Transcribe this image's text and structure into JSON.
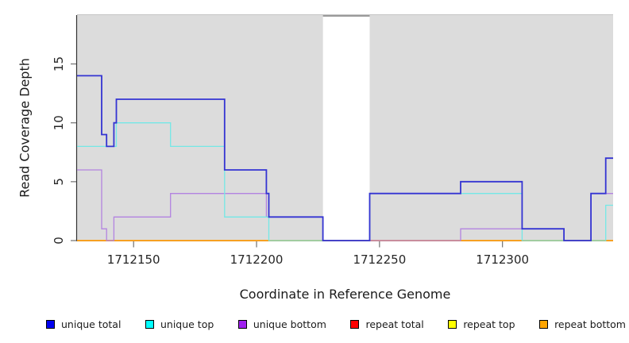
{
  "chart_data": {
    "type": "line",
    "subtype": "step",
    "title": "",
    "xlabel": "Coordinate in Reference Genome",
    "ylabel": "Read Coverage Depth",
    "xlim": [
      1712127,
      1712345
    ],
    "ylim": [
      0,
      19.15
    ],
    "grid": false,
    "legend_position": "bottom",
    "plot_bg_color": "#dcdcdc",
    "gap_x": [
      1712227,
      1712246
    ],
    "x_ticks": [
      {
        "value": 1712150,
        "label": "1712150"
      },
      {
        "value": 1712200,
        "label": "1712200"
      },
      {
        "value": 1712250,
        "label": "1712250"
      },
      {
        "value": 1712300,
        "label": "1712300"
      }
    ],
    "y_ticks": [
      {
        "value": 0,
        "label": "0"
      },
      {
        "value": 5,
        "label": "5"
      },
      {
        "value": 10,
        "label": "10"
      },
      {
        "value": 15,
        "label": "15"
      }
    ],
    "series": [
      {
        "name": "unique total",
        "line_color": "#3434d2",
        "swatch_color": "#0000f0",
        "line_width": 1.8,
        "steps": [
          [
            1712127,
            14
          ],
          [
            1712137,
            9
          ],
          [
            1712139,
            8
          ],
          [
            1712142,
            10
          ],
          [
            1712143,
            12
          ],
          [
            1712187,
            6
          ],
          [
            1712204,
            4
          ],
          [
            1712205,
            2
          ],
          [
            1712227,
            0
          ],
          [
            1712246,
            4
          ],
          [
            1712283,
            5
          ],
          [
            1712308,
            1
          ],
          [
            1712325,
            0
          ],
          [
            1712336,
            4
          ],
          [
            1712342,
            7
          ]
        ]
      },
      {
        "name": "unique top",
        "line_color": "#74e8e6",
        "swatch_color": "#00ffff",
        "line_width": 1.3,
        "steps": [
          [
            1712127,
            8
          ],
          [
            1712143,
            10
          ],
          [
            1712165,
            8
          ],
          [
            1712187,
            2
          ],
          [
            1712205,
            0
          ],
          [
            1712246,
            4
          ],
          [
            1712308,
            0
          ],
          [
            1712342,
            3
          ]
        ]
      },
      {
        "name": "unique bottom",
        "line_color": "#b383e0",
        "swatch_color": "#a020f0",
        "line_width": 1.3,
        "steps": [
          [
            1712127,
            6
          ],
          [
            1712137,
            1
          ],
          [
            1712139,
            0
          ],
          [
            1712142,
            2
          ],
          [
            1712165,
            4
          ],
          [
            1712204,
            2
          ],
          [
            1712227,
            0
          ],
          [
            1712283,
            1
          ],
          [
            1712325,
            0
          ],
          [
            1712336,
            4
          ]
        ]
      },
      {
        "name": "repeat total",
        "line_color": "#dc4a6a",
        "swatch_color": "#ff0000",
        "line_width": 1.2,
        "steps": [
          [
            1712127,
            0
          ]
        ]
      },
      {
        "name": "repeat top",
        "line_color": "#ffff00",
        "swatch_color": "#ffff00",
        "line_width": 1.2,
        "steps": [
          [
            1712127,
            0
          ]
        ]
      },
      {
        "name": "repeat bottom",
        "line_color": "#ffa319",
        "swatch_color": "#ffa500",
        "line_width": 1.8,
        "steps": [
          [
            1712127,
            0
          ]
        ]
      }
    ],
    "draw_order": [
      4,
      3,
      5,
      2,
      1,
      0
    ]
  }
}
